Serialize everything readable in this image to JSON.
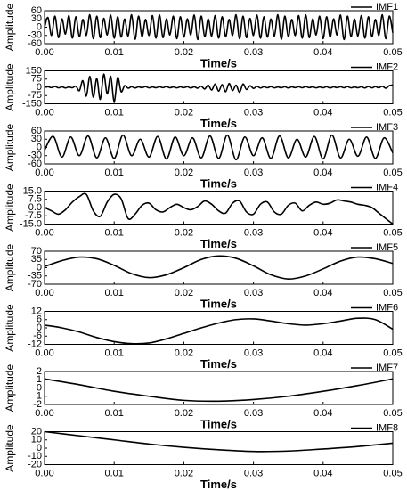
{
  "chart_data": [
    {
      "type": "line",
      "xlabel": "Time/s",
      "ylabel": "Amplitude",
      "legend": "upper right",
      "x": [
        0,
        0.0005,
        0.001,
        0.0015,
        0.002,
        0.0025,
        0.003,
        0.0035,
        0.004,
        0.0045,
        0.005,
        0.0055,
        0.006,
        0.0065,
        0.007,
        0.0075,
        0.008,
        0.0085,
        0.009,
        0.0095,
        0.01,
        0.0105,
        0.011,
        0.0115,
        0.012,
        0.0125,
        0.013,
        0.0135,
        0.014,
        0.0145,
        0.015,
        0.0155,
        0.016,
        0.0165,
        0.017,
        0.0175,
        0.018,
        0.0185,
        0.019,
        0.0195,
        0.02,
        0.0205,
        0.021,
        0.0215,
        0.022,
        0.0225,
        0.023,
        0.0235,
        0.024,
        0.0245,
        0.025,
        0.0255,
        0.026,
        0.0265,
        0.027,
        0.0275,
        0.028,
        0.0285,
        0.029,
        0.0295,
        0.03,
        0.0305,
        0.031,
        0.0315,
        0.032,
        0.0325,
        0.033,
        0.0335,
        0.034,
        0.0345,
        0.035,
        0.0355,
        0.036,
        0.0365,
        0.037,
        0.0375,
        0.038,
        0.0385,
        0.039,
        0.0395,
        0.04,
        0.0405,
        0.041,
        0.0415,
        0.042,
        0.0425,
        0.043,
        0.0435,
        0.044,
        0.0445,
        0.045,
        0.0455,
        0.046,
        0.0465,
        0.047,
        0.0475,
        0.048,
        0.0485,
        0.049,
        0.0495,
        0.05
      ],
      "series": [
        {
          "name": "IMF1",
          "color": "#000000",
          "values": [
            0,
            35,
            -30,
            40,
            -38,
            30,
            -25,
            42,
            -40,
            38,
            -35,
            28,
            -30,
            45,
            -42,
            40,
            -38,
            32,
            -28,
            44,
            -40,
            38,
            -36,
            30,
            -32,
            45,
            -44,
            40,
            -35,
            28,
            -30,
            42,
            -40,
            45,
            -38,
            30,
            -28,
            40,
            -42,
            38,
            -36,
            30,
            -28,
            44,
            -45,
            40,
            -35,
            30,
            -32,
            42,
            -40,
            38,
            -35,
            28,
            -30,
            45,
            -42,
            40,
            -38,
            32,
            -30,
            44,
            -40,
            38,
            -36,
            30,
            -32,
            45,
            -44,
            40,
            -35,
            28,
            -30,
            42,
            -40,
            45,
            -38,
            30,
            -28,
            40,
            -42,
            38,
            -36,
            30,
            -28,
            44,
            -45,
            40,
            -35,
            30,
            -32,
            42,
            -40,
            38,
            -35,
            28,
            -30,
            45,
            -42,
            40,
            -20
          ]
        }
      ],
      "xlim": [
        0,
        0.05
      ],
      "ylim": [
        -60,
        60
      ],
      "xticks": [
        {
          "value": 0,
          "label": "0.00"
        },
        {
          "value": 0.01,
          "label": "0.01"
        },
        {
          "value": 0.02,
          "label": "0.02"
        },
        {
          "value": 0.03,
          "label": "0.03"
        },
        {
          "value": 0.04,
          "label": "0.04"
        },
        {
          "value": 0.05,
          "label": "0.05"
        }
      ],
      "yticks": [
        60,
        30,
        0,
        -30,
        -60
      ]
    },
    {
      "type": "line",
      "xlabel": "Time/s",
      "ylabel": "Amplitude",
      "legend": "upper right",
      "x": [
        0,
        0.0005,
        0.001,
        0.0015,
        0.002,
        0.0025,
        0.003,
        0.0035,
        0.004,
        0.0045,
        0.005,
        0.0055,
        0.006,
        0.0065,
        0.007,
        0.0075,
        0.008,
        0.0085,
        0.009,
        0.0095,
        0.01,
        0.0105,
        0.011,
        0.0115,
        0.012,
        0.0125,
        0.013,
        0.0135,
        0.014,
        0.0145,
        0.015,
        0.0155,
        0.016,
        0.0165,
        0.017,
        0.0175,
        0.018,
        0.0185,
        0.019,
        0.0195,
        0.02,
        0.0205,
        0.021,
        0.0215,
        0.022,
        0.0225,
        0.023,
        0.0235,
        0.024,
        0.0245,
        0.025,
        0.0255,
        0.026,
        0.0265,
        0.027,
        0.0275,
        0.028,
        0.0285,
        0.029,
        0.0295,
        0.03,
        0.0305,
        0.031,
        0.0315,
        0.032,
        0.0325,
        0.033,
        0.0335,
        0.034,
        0.0345,
        0.035,
        0.0355,
        0.036,
        0.0365,
        0.037,
        0.0375,
        0.038,
        0.0385,
        0.039,
        0.0395,
        0.04,
        0.0405,
        0.041,
        0.0415,
        0.042,
        0.0425,
        0.043,
        0.0435,
        0.044,
        0.0445,
        0.045,
        0.0455,
        0.046,
        0.0465,
        0.047,
        0.0475,
        0.048,
        0.0485,
        0.049,
        0.0495,
        0.05
      ],
      "series": [
        {
          "name": "IMF2",
          "color": "#000000",
          "values": [
            0,
            5,
            -3,
            8,
            -5,
            4,
            -6,
            3,
            -4,
            10,
            -30,
            60,
            -80,
            100,
            -90,
            80,
            -110,
            120,
            -60,
            100,
            -130,
            90,
            -40,
            15,
            -8,
            5,
            -6,
            4,
            -3,
            6,
            -5,
            3,
            -4,
            5,
            -3,
            6,
            -4,
            3,
            -5,
            4,
            -3,
            5,
            -6,
            4,
            -8,
            10,
            -15,
            20,
            -25,
            30,
            -35,
            25,
            -40,
            35,
            -30,
            20,
            -45,
            30,
            -20,
            15,
            -10,
            8,
            -6,
            5,
            -4,
            6,
            -5,
            3,
            -4,
            5,
            -6,
            4,
            -3,
            5,
            -4,
            6,
            -3,
            4,
            -5,
            3,
            -4,
            5,
            -6,
            4,
            -3,
            5,
            -4,
            6,
            -5,
            3,
            -4,
            5,
            -6,
            8,
            -5,
            6,
            -4,
            10,
            -8,
            15,
            20
          ]
        }
      ],
      "xlim": [
        0,
        0.05
      ],
      "ylim": [
        -150,
        150
      ],
      "xticks": [
        {
          "value": 0,
          "label": "0.00"
        },
        {
          "value": 0.01,
          "label": "0.01"
        },
        {
          "value": 0.02,
          "label": "0.02"
        },
        {
          "value": 0.03,
          "label": "0.03"
        },
        {
          "value": 0.04,
          "label": "0.04"
        },
        {
          "value": 0.05,
          "label": "0.05"
        }
      ],
      "yticks": [
        150,
        75,
        0,
        -75,
        -150
      ]
    },
    {
      "type": "line",
      "xlabel": "Time/s",
      "ylabel": "Amplitude",
      "legend": "upper right",
      "x": [
        0,
        0.00125,
        0.0025,
        0.00375,
        0.005,
        0.00625,
        0.0075,
        0.00875,
        0.01,
        0.01125,
        0.0125,
        0.01375,
        0.015,
        0.01625,
        0.0175,
        0.01875,
        0.02,
        0.02125,
        0.0225,
        0.02375,
        0.025,
        0.02625,
        0.0275,
        0.02875,
        0.03,
        0.03125,
        0.0325,
        0.03375,
        0.035,
        0.03625,
        0.0375,
        0.03875,
        0.04,
        0.04125,
        0.0425,
        0.04375,
        0.045,
        0.04625,
        0.0475,
        0.04875,
        0.05
      ],
      "series": [
        {
          "name": "IMF3",
          "color": "#000000",
          "values": [
            -10,
            40,
            -35,
            38,
            -30,
            42,
            -38,
            35,
            -40,
            45,
            -30,
            30,
            -35,
            40,
            -42,
            38,
            -30,
            35,
            -38,
            42,
            -40,
            45,
            -45,
            38,
            -30,
            35,
            -40,
            42,
            -38,
            30,
            -35,
            40,
            -42,
            45,
            -38,
            30,
            -32,
            38,
            -40,
            35,
            -20
          ]
        }
      ],
      "xlim": [
        0,
        0.05
      ],
      "ylim": [
        -60,
        60
      ],
      "xticks": [
        {
          "value": 0,
          "label": "0.00"
        },
        {
          "value": 0.01,
          "label": "0.01"
        },
        {
          "value": 0.02,
          "label": "0.02"
        },
        {
          "value": 0.03,
          "label": "0.03"
        },
        {
          "value": 0.04,
          "label": "0.04"
        },
        {
          "value": 0.05,
          "label": "0.05"
        }
      ],
      "yticks": [
        60,
        30,
        0,
        -30,
        -60
      ]
    },
    {
      "type": "line",
      "xlabel": "Time/s",
      "ylabel": "Amplitude",
      "legend": "upper right",
      "x": [
        0,
        0.001,
        0.002,
        0.003,
        0.004,
        0.005,
        0.006,
        0.007,
        0.008,
        0.009,
        0.01,
        0.011,
        0.012,
        0.013,
        0.014,
        0.015,
        0.016,
        0.017,
        0.018,
        0.019,
        0.02,
        0.021,
        0.022,
        0.023,
        0.024,
        0.025,
        0.026,
        0.027,
        0.028,
        0.029,
        0.03,
        0.031,
        0.032,
        0.033,
        0.034,
        0.035,
        0.036,
        0.037,
        0.038,
        0.039,
        0.04,
        0.041,
        0.042,
        0.043,
        0.044,
        0.045,
        0.046,
        0.047,
        0.048,
        0.049,
        0.05
      ],
      "series": [
        {
          "name": "IMF4",
          "color": "#000000",
          "values": [
            0,
            -3,
            -6,
            -2,
            5,
            10,
            12,
            -3,
            -8,
            5,
            12,
            8,
            -10,
            -6,
            2,
            4,
            -2,
            -4,
            0,
            3,
            0,
            -2,
            1,
            6,
            3,
            -3,
            -5,
            4,
            6,
            -4,
            -6,
            3,
            5,
            -4,
            -6,
            2,
            4,
            -3,
            2,
            5,
            3,
            4,
            7,
            6,
            5,
            3,
            2,
            0,
            -5,
            -10,
            -15
          ]
        }
      ],
      "xlim": [
        0,
        0.05
      ],
      "ylim": [
        -15,
        15
      ],
      "xticks": [
        {
          "value": 0,
          "label": "0.00"
        },
        {
          "value": 0.01,
          "label": "0.01"
        },
        {
          "value": 0.02,
          "label": "0.02"
        },
        {
          "value": 0.03,
          "label": "0.03"
        },
        {
          "value": 0.04,
          "label": "0.04"
        },
        {
          "value": 0.05,
          "label": "0.05"
        }
      ],
      "yticks": [
        {
          "value": 15,
          "label": "15.0"
        },
        {
          "value": 7.5,
          "label": "7.5"
        },
        {
          "value": 0,
          "label": "0.0"
        },
        {
          "value": -7.5,
          "label": "-7.5"
        },
        {
          "value": -15,
          "label": "-15.0"
        }
      ]
    },
    {
      "type": "line",
      "xlabel": "Time/s",
      "ylabel": "Amplitude",
      "legend": "upper right",
      "x": [
        0,
        0.0025,
        0.005,
        0.0075,
        0.01,
        0.0125,
        0.015,
        0.0175,
        0.02,
        0.0225,
        0.025,
        0.0275,
        0.03,
        0.0325,
        0.035,
        0.0375,
        0.04,
        0.0425,
        0.045,
        0.0475,
        0.05
      ],
      "series": [
        {
          "name": "IMF5",
          "color": "#000000",
          "values": [
            5,
            30,
            45,
            38,
            10,
            -25,
            -42,
            -30,
            0,
            35,
            50,
            40,
            8,
            -30,
            -48,
            -35,
            -5,
            28,
            45,
            38,
            18
          ]
        }
      ],
      "xlim": [
        0,
        0.05
      ],
      "ylim": [
        -70,
        70
      ],
      "xticks": [
        {
          "value": 0,
          "label": "0.00"
        },
        {
          "value": 0.01,
          "label": "0.01"
        },
        {
          "value": 0.02,
          "label": "0.02"
        },
        {
          "value": 0.03,
          "label": "0.03"
        },
        {
          "value": 0.04,
          "label": "0.04"
        },
        {
          "value": 0.05,
          "label": "0.05"
        }
      ],
      "yticks": [
        70,
        35,
        0,
        -35,
        -70
      ]
    },
    {
      "type": "line",
      "xlabel": "Time/s",
      "ylabel": "Amplitude",
      "legend": "upper right",
      "x": [
        0,
        0.0025,
        0.005,
        0.0075,
        0.01,
        0.0125,
        0.015,
        0.0175,
        0.02,
        0.0225,
        0.025,
        0.0275,
        0.03,
        0.0325,
        0.035,
        0.0375,
        0.04,
        0.0425,
        0.045,
        0.0475,
        0.05
      ],
      "series": [
        {
          "name": "IMF6",
          "color": "#000000",
          "values": [
            2,
            0,
            -3,
            -7,
            -10,
            -11.5,
            -11,
            -8,
            -4,
            0,
            3.5,
            6,
            6.5,
            5,
            3,
            2,
            3,
            5,
            7,
            6,
            -1
          ]
        }
      ],
      "xlim": [
        0,
        0.05
      ],
      "ylim": [
        -12,
        12
      ],
      "xticks": [
        {
          "value": 0,
          "label": "0.00"
        },
        {
          "value": 0.01,
          "label": "0.01"
        },
        {
          "value": 0.02,
          "label": "0.02"
        },
        {
          "value": 0.03,
          "label": "0.03"
        },
        {
          "value": 0.04,
          "label": "0.04"
        },
        {
          "value": 0.05,
          "label": "0.05"
        }
      ],
      "yticks": [
        12,
        6,
        0,
        -6,
        -12
      ]
    },
    {
      "type": "line",
      "xlabel": "Time/s",
      "ylabel": "Amplitude",
      "legend": "upper right",
      "x": [
        0,
        0.005,
        0.01,
        0.015,
        0.02,
        0.025,
        0.03,
        0.035,
        0.04,
        0.045,
        0.05
      ],
      "series": [
        {
          "name": "IMF7",
          "color": "#000000",
          "values": [
            1.1,
            0.4,
            -0.4,
            -1.0,
            -1.5,
            -1.6,
            -1.4,
            -1.0,
            -0.4,
            0.3,
            1.1
          ]
        }
      ],
      "xlim": [
        0,
        0.05
      ],
      "ylim": [
        -2,
        2
      ],
      "xticks": [
        {
          "value": 0,
          "label": "0.00"
        },
        {
          "value": 0.01,
          "label": "0.01"
        },
        {
          "value": 0.02,
          "label": "0.02"
        },
        {
          "value": 0.03,
          "label": "0.03"
        },
        {
          "value": 0.04,
          "label": "0.04"
        },
        {
          "value": 0.05,
          "label": "0.05"
        }
      ],
      "yticks": [
        2,
        1,
        0,
        -1,
        -2
      ]
    },
    {
      "type": "line",
      "xlabel": "Time/s",
      "ylabel": "Amplitude",
      "legend": "upper right",
      "x": [
        0,
        0.005,
        0.01,
        0.015,
        0.02,
        0.025,
        0.03,
        0.035,
        0.04,
        0.045,
        0.05
      ],
      "series": [
        {
          "name": "IMF8",
          "color": "#000000",
          "values": [
            20,
            15,
            10,
            5,
            1,
            -2,
            -4,
            -3.5,
            -1,
            2,
            6
          ]
        }
      ],
      "xlim": [
        0,
        0.05
      ],
      "ylim": [
        -20,
        20
      ],
      "xticks": [
        {
          "value": 0,
          "label": "0.00"
        },
        {
          "value": 0.01,
          "label": "0.01"
        },
        {
          "value": 0.02,
          "label": "0.02"
        },
        {
          "value": 0.03,
          "label": "0.03"
        },
        {
          "value": 0.04,
          "label": "0.04"
        },
        {
          "value": 0.05,
          "label": "0.05"
        }
      ],
      "yticks": [
        20,
        10,
        0,
        -10,
        -20
      ]
    }
  ]
}
